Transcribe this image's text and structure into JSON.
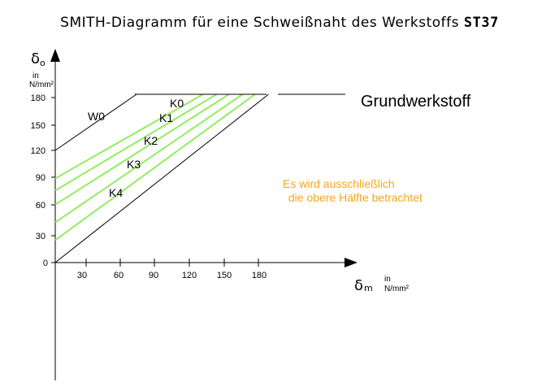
{
  "title": {
    "main": "SMITH-Diagramm für eine Schweißnaht des Werkstoffs",
    "material": "ST37"
  },
  "y_axis": {
    "symbol": "δ",
    "subscript": "o",
    "unit_line1": "in",
    "unit_line2": "N/mm²",
    "ticks": [
      "0",
      "30",
      "60",
      "90",
      "120",
      "150",
      "180"
    ]
  },
  "x_axis": {
    "symbol": "δ",
    "subscript": "m",
    "unit_line1": "in",
    "unit_line2": "N/mm²",
    "ticks": [
      "30",
      "60",
      "90",
      "120",
      "150",
      "180"
    ]
  },
  "labels": {
    "base_material": "Grundwerkstoff",
    "w0": "W0",
    "k0": "K0",
    "k1": "K1",
    "k2": "K2",
    "k3": "K3",
    "k4": "K4"
  },
  "note": {
    "line1": "Es wird ausschließlich",
    "line2": " die obere Hälfte betrachtet",
    "color": "#f5a623"
  },
  "colors": {
    "notch_lines": "#90ee60",
    "axes": "#000000"
  },
  "chart_data": {
    "type": "line",
    "xlabel": "δm in N/mm²",
    "ylabel": "δo in N/mm²",
    "xlim": [
      0,
      180
    ],
    "ylim": [
      0,
      180
    ],
    "series": [
      {
        "name": "W0",
        "points": [
          [
            0,
            120
          ],
          [
            72,
            180
          ]
        ]
      },
      {
        "name": "K0",
        "points": [
          [
            0,
            90
          ],
          [
            131,
            180
          ]
        ]
      },
      {
        "name": "K1",
        "points": [
          [
            0,
            77
          ],
          [
            143,
            180
          ]
        ]
      },
      {
        "name": "K2",
        "points": [
          [
            0,
            62
          ],
          [
            154,
            180
          ]
        ]
      },
      {
        "name": "K3",
        "points": [
          [
            0,
            43
          ],
          [
            166,
            180
          ]
        ]
      },
      {
        "name": "K4",
        "points": [
          [
            0,
            24
          ],
          [
            177,
            180
          ]
        ]
      },
      {
        "name": "Grundwerkstoff",
        "points": [
          [
            0,
            0
          ],
          [
            189,
            180
          ]
        ]
      }
    ]
  }
}
